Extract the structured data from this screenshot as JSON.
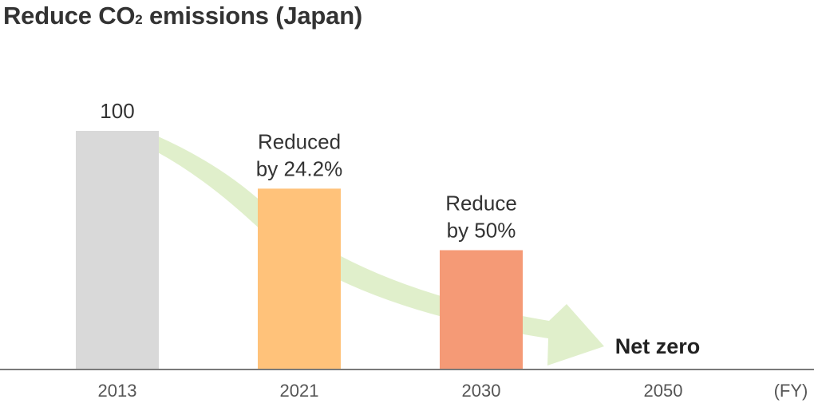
{
  "title": {
    "main": "Reduce CO",
    "subscript": "2",
    "rest": " emissions (Japan)"
  },
  "chart_data": {
    "type": "bar",
    "categories": [
      "2013",
      "2021",
      "2030",
      "2050"
    ],
    "values": [
      100,
      75.8,
      50,
      0
    ],
    "bar_labels": [
      "100",
      "Reduced\nby 24.2%",
      "Reduce\nby 50%",
      "Net zero"
    ],
    "x_unit_label": "(FY)",
    "ylim": [
      0,
      100
    ],
    "grid": false,
    "colors": [
      "#d9d9d9",
      "#ffc27a",
      "#f59a76",
      "#f59a76"
    ],
    "arrow_color": "#e0efcb",
    "baseline_color": "#7a7a7a"
  }
}
